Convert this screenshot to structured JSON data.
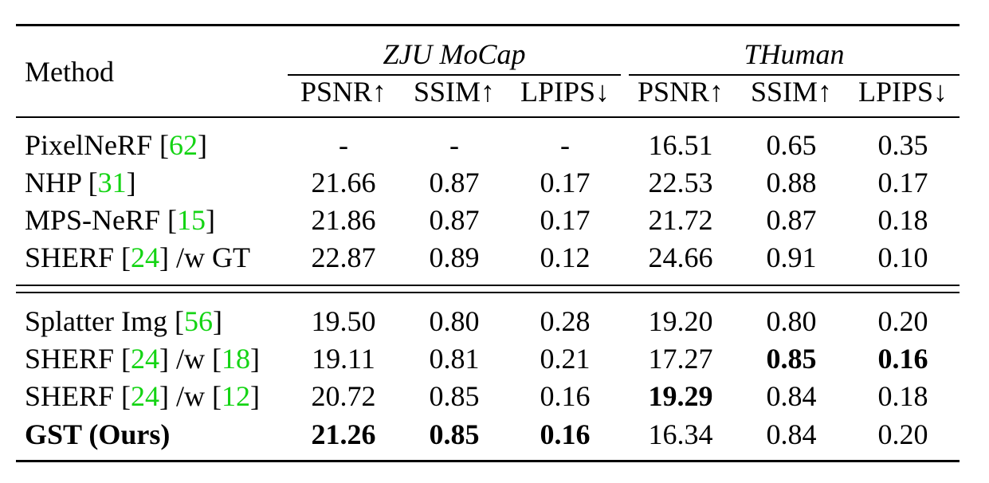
{
  "header": {
    "method": "Method",
    "groups": [
      "ZJU MoCap",
      "THuman"
    ],
    "metrics": [
      "PSNR↑",
      "SSIM↑",
      "LPIPS↓",
      "PSNR↑",
      "SSIM↑",
      "LPIPS↓"
    ]
  },
  "rows": [
    {
      "m0": "PixelNeRF [",
      "r0": "62",
      "m1": "]",
      "v": [
        "-",
        "-",
        "-",
        "16.51",
        "0.65",
        "0.35"
      ]
    },
    {
      "m0": "NHP [",
      "r0": "31",
      "m1": "]",
      "v": [
        "21.66",
        "0.87",
        "0.17",
        "22.53",
        "0.88",
        "0.17"
      ]
    },
    {
      "m0": "MPS-NeRF [",
      "r0": "15",
      "m1": "]",
      "v": [
        "21.86",
        "0.87",
        "0.17",
        "21.72",
        "0.87",
        "0.18"
      ]
    },
    {
      "m0": "SHERF [",
      "r0": "24",
      "m1": "] /w GT",
      "v": [
        "22.87",
        "0.89",
        "0.12",
        "24.66",
        "0.91",
        "0.10"
      ]
    },
    {
      "m0": "Splatter Img [",
      "r0": "56",
      "m1": "]",
      "v": [
        "19.50",
        "0.80",
        "0.28",
        "19.20",
        "0.80",
        "0.20"
      ]
    },
    {
      "m0": "SHERF [",
      "r0": "24",
      "m1": "] /w [",
      "r1": "18",
      "m2": "]",
      "v": [
        "19.11",
        "0.81",
        "0.21",
        "17.27",
        "0.85",
        "0.16"
      ]
    },
    {
      "m0": "SHERF [",
      "r0": "24",
      "m1": "] /w [",
      "r1": "12",
      "m2": "]",
      "v": [
        "20.72",
        "0.85",
        "0.16",
        "19.29",
        "0.84",
        "0.18"
      ]
    },
    {
      "m0": "GST (Ours)",
      "v": [
        "21.26",
        "0.85",
        "0.16",
        "16.34",
        "0.84",
        "0.20"
      ]
    }
  ]
}
